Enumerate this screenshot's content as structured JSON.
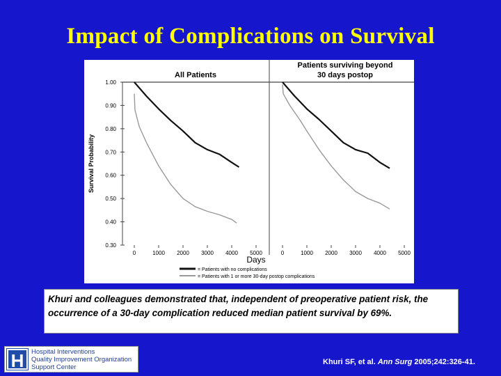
{
  "slide": {
    "title": "Impact of Complications on Survival",
    "background_color": "#1616cc",
    "title_color": "#ffff00"
  },
  "caption": "Khuri and colleagues demonstrated that, independent of preoperative patient risk, the occurrence of a 30-day complication reduced median patient survival by 69%.",
  "logo": {
    "letter": "H",
    "lines": [
      "Hospital Interventions",
      "Quality Improvement Organization",
      "Support Center"
    ]
  },
  "citation": {
    "authors": "Khuri SF, et al. ",
    "journal": "Ann Surg",
    "details": " 2005;242:326-41."
  },
  "chart_data": [
    {
      "type": "line",
      "title": "All Patients",
      "ylabel": "Survival Probability",
      "xlabel": "Days",
      "ylim": [
        0.3,
        1.0
      ],
      "xlim": [
        0,
        5000
      ],
      "yticks": [
        "1.00",
        "0.90",
        "0.80",
        "0.70",
        "0.60",
        "0.50",
        "0.40",
        "0.30"
      ],
      "xticks": [
        "0",
        "1000",
        "2000",
        "3000",
        "4000",
        "5000"
      ],
      "series": [
        {
          "name": "= Patients with no complications",
          "color": "#111111",
          "x": [
            0,
            500,
            1000,
            1500,
            2000,
            2500,
            3000,
            3500,
            4000,
            4300
          ],
          "y": [
            1.0,
            0.94,
            0.885,
            0.835,
            0.79,
            0.74,
            0.71,
            0.69,
            0.655,
            0.635
          ]
        },
        {
          "name": "= Patients with 1 or more 30-day postop complications",
          "color": "#999999",
          "x": [
            0,
            30,
            200,
            500,
            1000,
            1500,
            2000,
            2500,
            3000,
            3500,
            4000,
            4200
          ],
          "y": [
            0.95,
            0.88,
            0.81,
            0.74,
            0.64,
            0.56,
            0.5,
            0.465,
            0.445,
            0.43,
            0.41,
            0.395
          ]
        }
      ]
    },
    {
      "type": "line",
      "title": "Patients surviving beyond 30 days postop",
      "ylim": [
        0.3,
        1.0
      ],
      "xlim": [
        0,
        5000
      ],
      "xticks": [
        "0",
        "1000",
        "2000",
        "3000",
        "4000",
        "5000"
      ],
      "series": [
        {
          "name": "= Patients with no complications",
          "color": "#111111",
          "x": [
            0,
            500,
            1000,
            1500,
            2000,
            2500,
            3000,
            3500,
            4000,
            4400
          ],
          "y": [
            1.0,
            0.94,
            0.885,
            0.84,
            0.79,
            0.74,
            0.71,
            0.695,
            0.655,
            0.63
          ]
        },
        {
          "name": "= Patients with 1 or more 30-day postop complications",
          "color": "#999999",
          "x": [
            0,
            30,
            300,
            700,
            1000,
            1500,
            2000,
            2500,
            3000,
            3500,
            4000,
            4400
          ],
          "y": [
            0.99,
            0.95,
            0.9,
            0.84,
            0.79,
            0.71,
            0.64,
            0.58,
            0.53,
            0.5,
            0.48,
            0.455
          ]
        }
      ]
    }
  ]
}
